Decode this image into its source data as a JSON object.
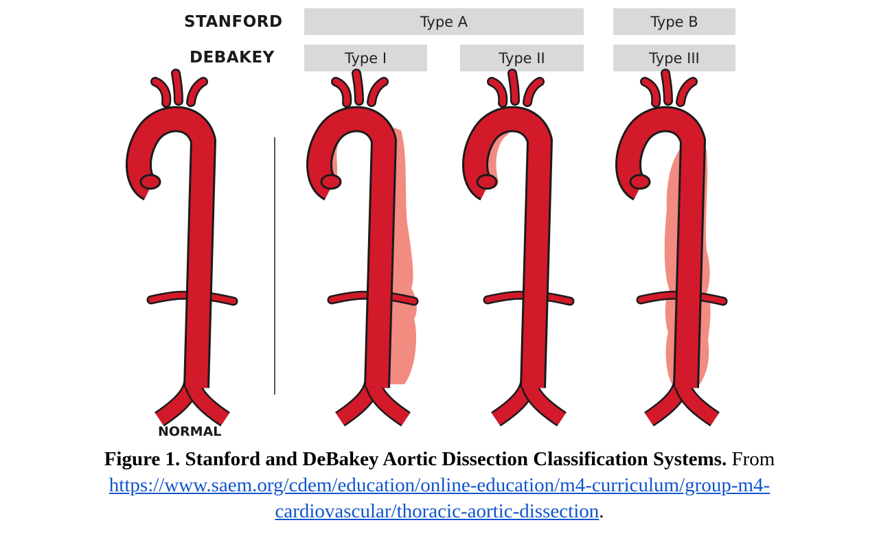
{
  "rows": {
    "stanford": "STANFORD",
    "debakey": "DEBAKEY"
  },
  "stanford_types": {
    "a": "Type A",
    "b": "Type B"
  },
  "debakey_types": {
    "i": "Type I",
    "ii": "Type II",
    "iii": "Type III"
  },
  "normal_label": "NORMAL",
  "caption": {
    "title": "Figure 1.  Stanford and DeBakey Aortic Dissection Classification Systems.",
    "from": "From",
    "url_line1": "https://www.saem.org/cdem/education/online-education/m4-curriculum/group-m4-",
    "url_line2": "cardiovascular/thoracic-aortic-dissection",
    "period": "."
  },
  "colors": {
    "aorta": "#d21a2a",
    "dissection": "#f28b80",
    "box": "#d9d9d9",
    "link": "#1155cc"
  }
}
